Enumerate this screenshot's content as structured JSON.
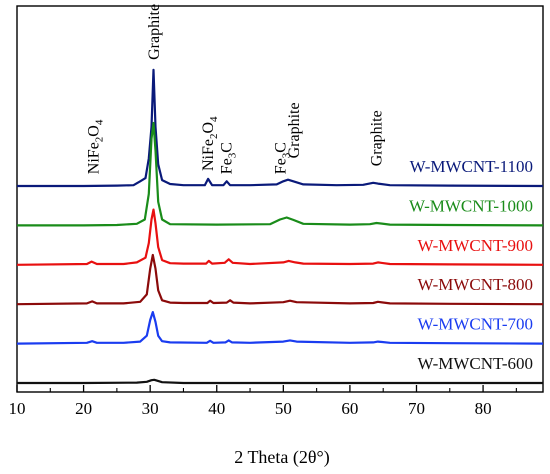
{
  "chart_data": {
    "type": "line",
    "title": "",
    "xlabel": "2 Theta (2θ°)",
    "ylabel": "",
    "xlim": [
      10,
      89
    ],
    "x_ticks": [
      "10",
      "20",
      "30",
      "40",
      "50",
      "60",
      "70",
      "80"
    ],
    "grid": false,
    "legend": "none",
    "series": [
      {
        "name": "W-MWCNT-1100",
        "color": "#0a1a7a",
        "offset": 5.0,
        "x": [
          10,
          20,
          25,
          27.5,
          28.5,
          29.3,
          29.8,
          30.2,
          30.5,
          30.8,
          31.2,
          31.8,
          33,
          35,
          38.2,
          38.7,
          39.3,
          41.0,
          41.5,
          42.0,
          45,
          49,
          50,
          50.7,
          51.5,
          53,
          58,
          62,
          63.5,
          64.2,
          66,
          75,
          89
        ],
        "y": [
          0.0,
          0.0,
          0.01,
          0.02,
          0.12,
          0.2,
          0.7,
          1.5,
          2.95,
          1.5,
          0.55,
          0.15,
          0.05,
          0.02,
          0.02,
          0.18,
          0.02,
          0.02,
          0.12,
          0.02,
          0.02,
          0.04,
          0.12,
          0.16,
          0.12,
          0.04,
          0.02,
          0.03,
          0.08,
          0.06,
          0.02,
          0.01,
          0.0
        ]
      },
      {
        "name": "W-MWCNT-1000",
        "color": "#1a8c1a",
        "offset": 4.0,
        "x": [
          10,
          20,
          25,
          28,
          29.2,
          29.8,
          30.2,
          30.5,
          30.8,
          31.2,
          31.8,
          33,
          40,
          48,
          49.5,
          50.5,
          51.5,
          53,
          60,
          63,
          64,
          66,
          75,
          89
        ],
        "y": [
          0.0,
          0.0,
          0.01,
          0.04,
          0.15,
          0.8,
          2.2,
          2.6,
          1.9,
          0.6,
          0.15,
          0.03,
          0.02,
          0.03,
          0.15,
          0.2,
          0.14,
          0.04,
          0.02,
          0.03,
          0.06,
          0.02,
          0.01,
          0.0
        ]
      },
      {
        "name": "W-MWCNT-900",
        "color": "#e81010",
        "offset": 3.0,
        "x": [
          10,
          20.5,
          21.2,
          22,
          26,
          28,
          29.3,
          29.8,
          30.2,
          30.5,
          30.8,
          31.2,
          31.8,
          33,
          35,
          38.4,
          38.8,
          39.3,
          41.2,
          41.8,
          42.4,
          45,
          50,
          50.8,
          51.8,
          53,
          60,
          63.5,
          64.2,
          66,
          75,
          89
        ],
        "y": [
          0.0,
          0.02,
          0.08,
          0.02,
          0.02,
          0.06,
          0.18,
          0.55,
          1.15,
          1.4,
          1.05,
          0.45,
          0.12,
          0.04,
          0.03,
          0.03,
          0.1,
          0.03,
          0.05,
          0.14,
          0.05,
          0.02,
          0.06,
          0.1,
          0.06,
          0.03,
          0.02,
          0.03,
          0.06,
          0.02,
          0.01,
          0.0
        ]
      },
      {
        "name": "W-MWCNT-800",
        "color": "#8b0a0a",
        "offset": 2.0,
        "x": [
          10,
          20.5,
          21.3,
          22,
          26,
          28.5,
          29.5,
          30.0,
          30.4,
          30.8,
          31.2,
          31.8,
          33,
          35,
          38.6,
          39.0,
          39.5,
          41.5,
          42.0,
          42.5,
          45,
          50,
          51,
          52,
          60,
          63.5,
          64.2,
          66,
          75,
          89
        ],
        "y": [
          0.0,
          0.02,
          0.07,
          0.02,
          0.02,
          0.06,
          0.25,
          0.9,
          1.25,
          0.9,
          0.35,
          0.1,
          0.04,
          0.03,
          0.03,
          0.09,
          0.03,
          0.04,
          0.1,
          0.04,
          0.02,
          0.05,
          0.09,
          0.05,
          0.02,
          0.03,
          0.06,
          0.02,
          0.01,
          0.0
        ]
      },
      {
        "name": "W-MWCNT-700",
        "color": "#1a3cf0",
        "offset": 1.0,
        "x": [
          10,
          20.5,
          21.3,
          22,
          26,
          28.5,
          29.5,
          30.0,
          30.4,
          30.8,
          31.2,
          31.8,
          33,
          38.5,
          39.0,
          39.5,
          41.3,
          41.8,
          42.3,
          45,
          50,
          51,
          52,
          60,
          63.5,
          64.2,
          66,
          75,
          89
        ],
        "y": [
          0.0,
          0.02,
          0.06,
          0.02,
          0.02,
          0.05,
          0.2,
          0.6,
          0.8,
          0.55,
          0.2,
          0.06,
          0.03,
          0.02,
          0.07,
          0.02,
          0.03,
          0.08,
          0.03,
          0.02,
          0.05,
          0.08,
          0.05,
          0.02,
          0.03,
          0.05,
          0.02,
          0.01,
          0.0
        ]
      },
      {
        "name": "W-MWCNT-600",
        "color": "#111111",
        "offset": 0.0,
        "x": [
          10,
          20,
          28,
          29.5,
          30.2,
          30.6,
          31.0,
          31.8,
          35,
          50,
          89
        ],
        "y": [
          0.0,
          0.0,
          0.01,
          0.03,
          0.07,
          0.08,
          0.06,
          0.02,
          0.0,
          0.0,
          0.0
        ]
      }
    ],
    "annotations": [
      {
        "base": "NiFe",
        "sub1": "2",
        "mid": "O",
        "sub2": "4",
        "x": 21.5,
        "lift": 0.3
      },
      {
        "base": "Graphite",
        "sub1": "",
        "mid": "",
        "sub2": "",
        "x": 30.6,
        "lift": 3.2
      },
      {
        "base": "NiFe",
        "sub1": "2",
        "mid": "O",
        "sub2": "4",
        "x": 38.7,
        "lift": 0.38
      },
      {
        "base": "Fe",
        "sub1": "3",
        "mid": "C",
        "sub2": "",
        "x": 41.5,
        "lift": 0.3
      },
      {
        "base": "Fe",
        "sub1": "3",
        "mid": "C",
        "sub2": "",
        "x": 49.6,
        "lift": 0.3
      },
      {
        "base": "Graphite",
        "sub1": "",
        "mid": "",
        "sub2": "",
        "x": 51.6,
        "lift": 0.7
      },
      {
        "base": "Graphite",
        "sub1": "",
        "mid": "",
        "sub2": "",
        "x": 64.0,
        "lift": 0.5
      }
    ]
  }
}
